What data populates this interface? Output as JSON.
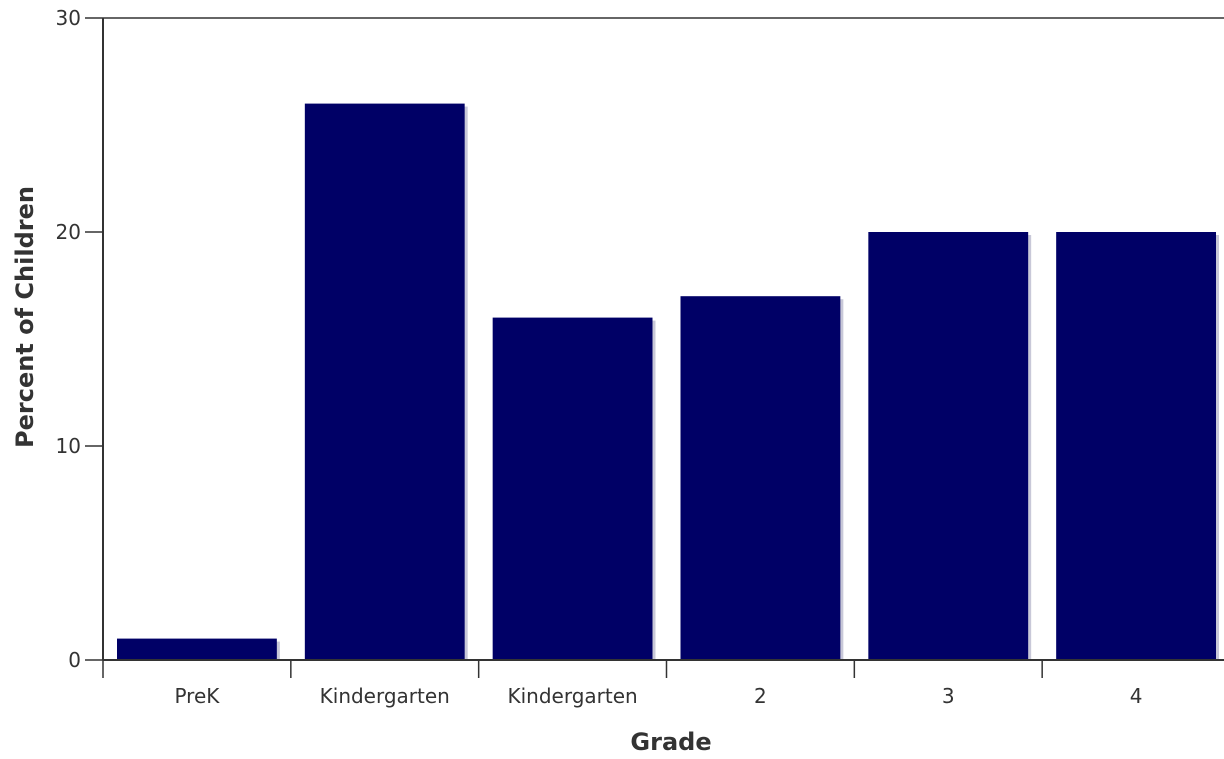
{
  "chart_data": {
    "type": "bar",
    "categories": [
      "PreK",
      "Kindergarten",
      "Kindergarten",
      "2",
      "3",
      "4"
    ],
    "values": [
      1,
      26,
      16,
      17,
      20,
      20
    ],
    "xlabel": "Grade",
    "ylabel": "Percent of Children",
    "ylim": [
      0,
      30
    ],
    "yticks": [
      "0",
      "10",
      "20",
      "30"
    ],
    "bar_color": "#000066",
    "bar_shadow_color": "#c8c8d8",
    "grid": false,
    "legend": "none"
  }
}
